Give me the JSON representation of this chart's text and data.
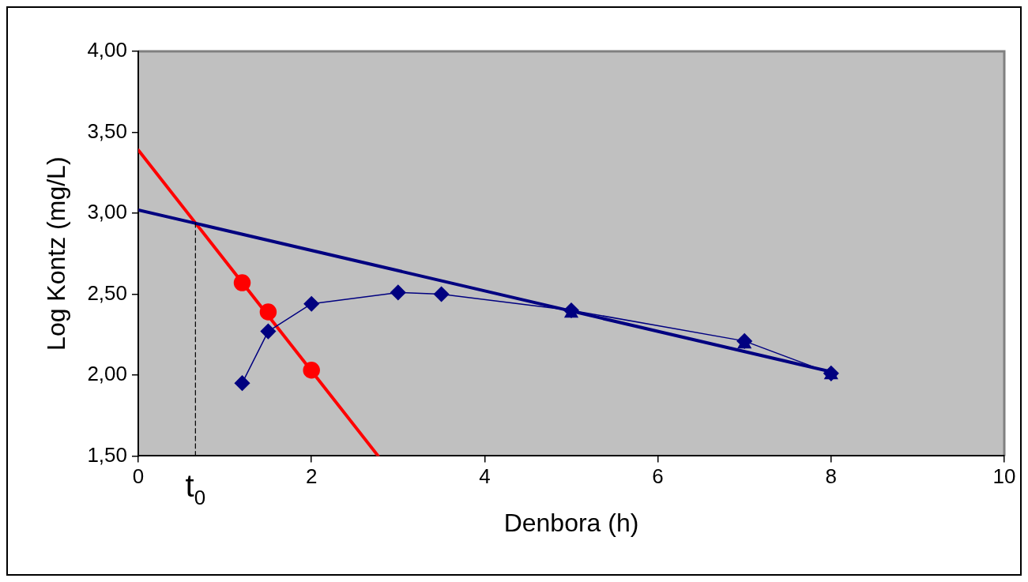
{
  "chart_data": {
    "type": "scatter",
    "xlabel": "Denbora (h)",
    "ylabel": "Log Kontz (mg/L)",
    "xlim": [
      0,
      10
    ],
    "xticks": [
      0,
      2,
      4,
      6,
      8,
      10
    ],
    "ylim": [
      1.5,
      4
    ],
    "yticks": [
      {
        "value": 1.5,
        "label": "1,50"
      },
      {
        "value": 2,
        "label": "2,00"
      },
      {
        "value": 2.5,
        "label": "2,50"
      },
      {
        "value": 3,
        "label": "3,00"
      },
      {
        "value": 3.5,
        "label": "3,50"
      },
      {
        "value": 4,
        "label": "4,00"
      }
    ],
    "grid": false,
    "legend": false,
    "series": [
      {
        "type": "line",
        "color": "#000080",
        "marker": "diamond",
        "x": [
          1.2,
          1.5,
          2,
          3,
          3.5,
          5,
          7,
          8
        ],
        "values": [
          1.95,
          2.27,
          2.44,
          2.51,
          2.5,
          2.4,
          2.21,
          2.01
        ]
      },
      {
        "type": "scatter",
        "color": "#000080",
        "marker": "triangle",
        "x": [
          5,
          7,
          8
        ],
        "values": [
          2.38,
          2.19,
          2
        ]
      },
      {
        "type": "line",
        "color": "#000080",
        "marker": "none",
        "x": [
          0,
          8
        ],
        "values": [
          3.02,
          2.02
        ]
      },
      {
        "type": "line",
        "color": "#ff0000",
        "marker": "none",
        "x": [
          0,
          2.77
        ],
        "values": [
          3.39,
          1.5
        ]
      },
      {
        "type": "scatter",
        "color": "#ff0000",
        "marker": "circle",
        "x": [
          1.2,
          1.5,
          2
        ],
        "values": [
          2.57,
          2.39,
          2.03
        ]
      },
      {
        "type": "line",
        "color": "#000000",
        "marker": "none",
        "line_style": "dashed",
        "x": [
          0.66,
          0.66
        ],
        "values": [
          1.5,
          2.94
        ]
      }
    ],
    "annotations": [
      {
        "text": "t$_{0}$",
        "x": 0.66,
        "y": 1.5
      }
    ]
  }
}
